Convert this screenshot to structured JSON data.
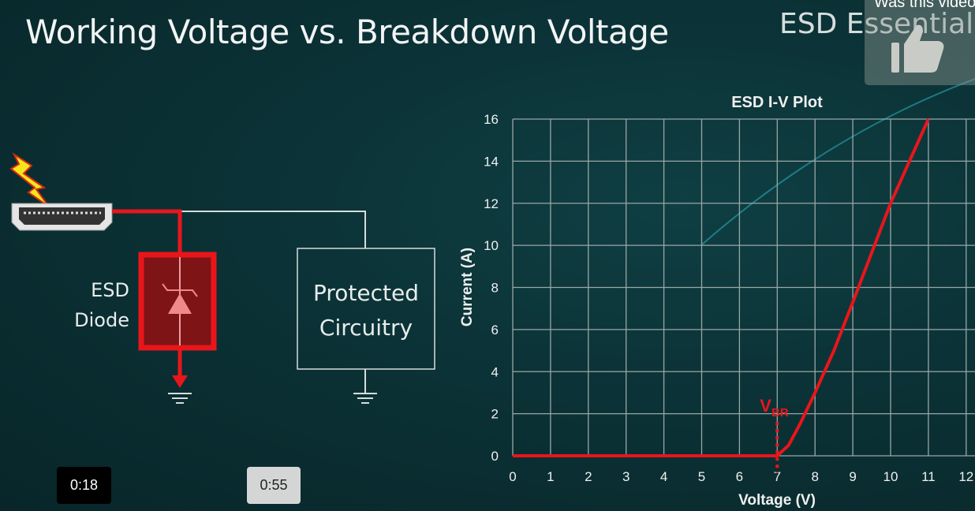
{
  "slide": {
    "title": "Working Voltage vs. Breakdown Voltage",
    "brand": "ESD Essentials",
    "diagram": {
      "diode_label_line1": "ESD",
      "diode_label_line2": "Diode",
      "circuit_label_line1": "Protected",
      "circuit_label_line2": "Circuitry",
      "icons": [
        "lightning-icon",
        "hdmi-connector-icon",
        "tvs-diode-icon",
        "ground-icon"
      ],
      "accent_color": "#e8161b"
    }
  },
  "feedback": {
    "question": "Was this video",
    "icon": "thumbs-up-icon"
  },
  "player": {
    "timestamps": [
      "0:18",
      "0:55"
    ]
  },
  "chart_data": {
    "type": "line",
    "title": "ESD I-V Plot",
    "xlabel": "Voltage (V)",
    "ylabel": "Current (A)",
    "xlim": [
      0,
      12
    ],
    "ylim": [
      0,
      16
    ],
    "xticks": [
      "0",
      "1",
      "2",
      "3",
      "4",
      "5",
      "6",
      "7",
      "8",
      "9",
      "10",
      "11",
      "12"
    ],
    "yticks": [
      "0",
      "2",
      "4",
      "6",
      "8",
      "10",
      "12",
      "14",
      "16"
    ],
    "grid": true,
    "series": [
      {
        "color": "#e8161b",
        "x": [
          0,
          7,
          7.3,
          7.6,
          8,
          8.5,
          9,
          10,
          11
        ],
        "y": [
          0,
          0,
          0.5,
          1.5,
          3,
          5,
          7.3,
          12,
          16
        ]
      }
    ],
    "annotation": {
      "text_main": "V",
      "text_sub": "BR",
      "x": 7
    }
  }
}
